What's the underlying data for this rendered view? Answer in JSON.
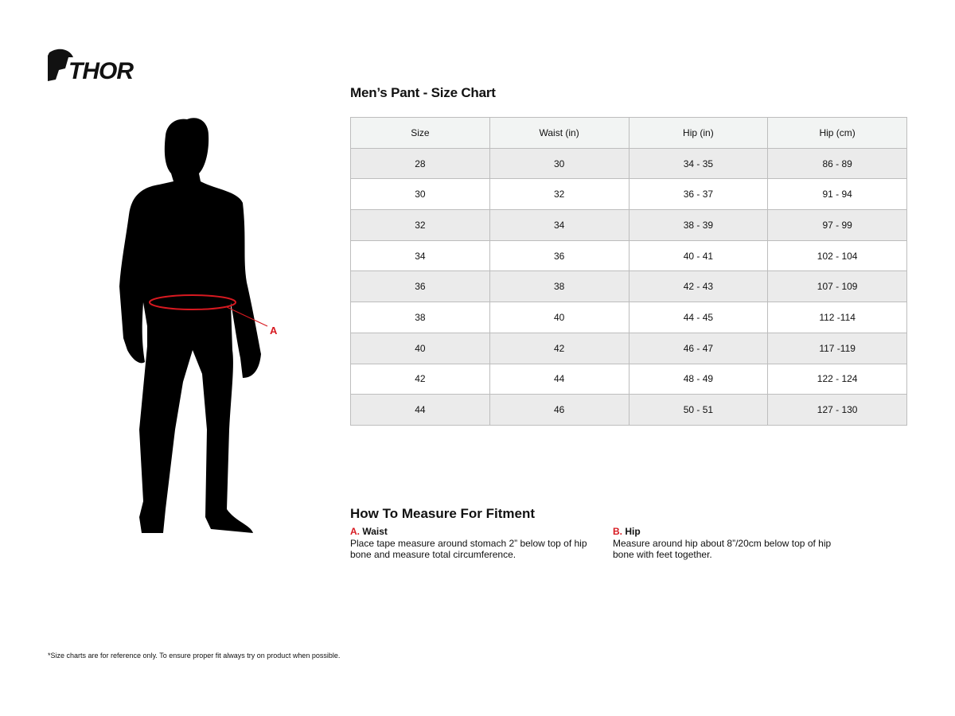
{
  "brand": {
    "logo_text": "THOR",
    "accent": "#d71920"
  },
  "title": "Men’s Pant - Size Chart",
  "table": {
    "headers": [
      "Size",
      "Waist (in)",
      "Hip (in)",
      "Hip (cm)"
    ],
    "rows": [
      [
        "28",
        "30",
        "34 - 35",
        "86 - 89"
      ],
      [
        "30",
        "32",
        "36 - 37",
        "91 - 94"
      ],
      [
        "32",
        "34",
        "38 - 39",
        "97 - 99"
      ],
      [
        "34",
        "36",
        "40 - 41",
        "102 - 104"
      ],
      [
        "36",
        "38",
        "42 - 43",
        "107 - 109"
      ],
      [
        "38",
        "40",
        "44 - 45",
        "112 -114"
      ],
      [
        "40",
        "42",
        "46 - 47",
        "117 -119"
      ],
      [
        "42",
        "44",
        "48 - 49",
        "122 - 124"
      ],
      [
        "44",
        "46",
        "50 - 51",
        "127 - 130"
      ]
    ]
  },
  "figure": {
    "marker_label": "A"
  },
  "howto": {
    "title": "How To Measure For Fitment",
    "items": [
      {
        "letter": "A.",
        "name": "Waist",
        "text": "Place tape measure around stomach 2” below top of hip bone and measure total circumference."
      },
      {
        "letter": "B.",
        "name": "Hip",
        "text": "Measure around hip about 8”/20cm below top of hip bone with feet together."
      }
    ]
  },
  "footnote": "*Size charts are for reference only. To ensure proper fit always try on product when possible."
}
